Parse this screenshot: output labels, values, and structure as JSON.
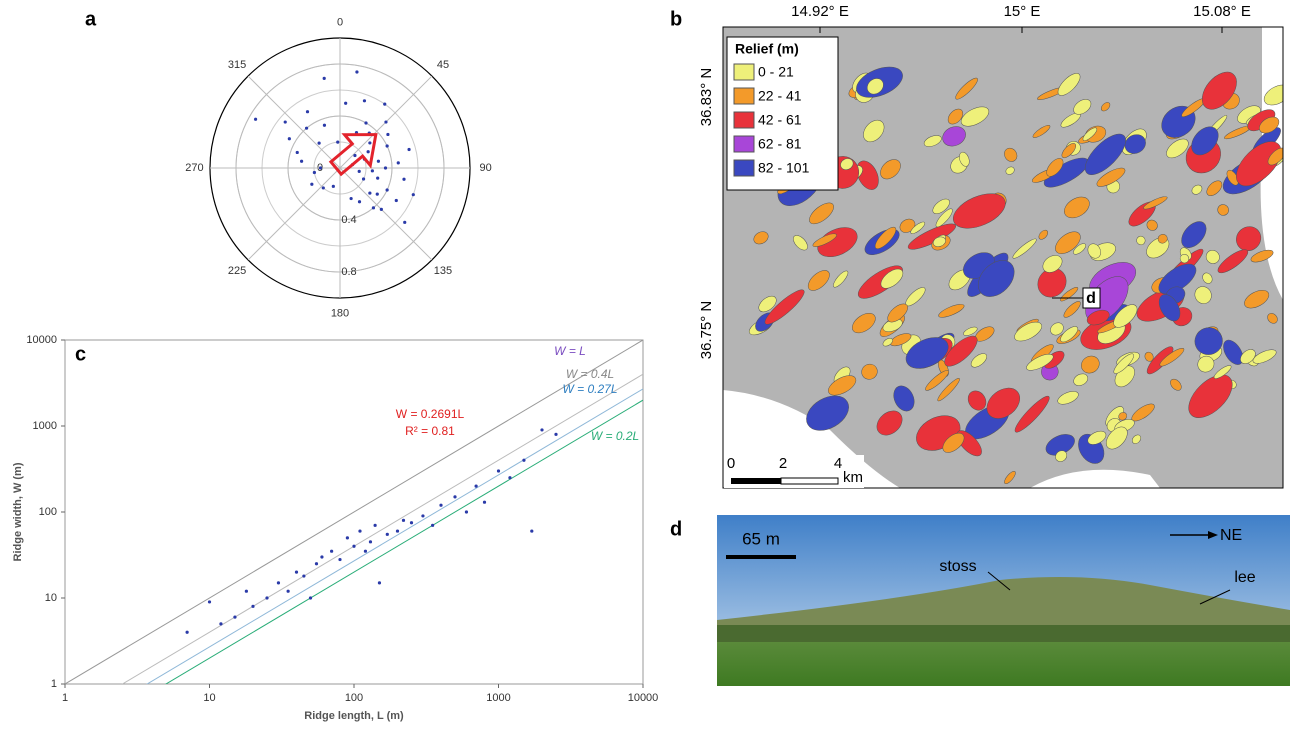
{
  "panels": [
    "a",
    "b",
    "c",
    "d"
  ],
  "chart_data": [
    {
      "type": "polar-scatter",
      "color": "#2a3aa8",
      "theta": [
        10,
        20,
        30,
        35,
        40,
        45,
        50,
        55,
        60,
        65,
        70,
        75,
        80,
        85,
        90,
        95,
        100,
        105,
        110,
        115,
        120,
        125,
        130,
        135,
        140,
        150,
        160,
        200,
        220,
        240,
        260,
        270,
        280,
        290,
        300,
        310,
        320,
        330,
        340,
        350,
        355,
        5,
        25,
        50,
        75,
        100,
        115,
        130,
        300,
        320
      ],
      "r": [
        0.75,
        0.55,
        0.4,
        0.6,
        0.35,
        0.5,
        0.3,
        0.45,
        0.25,
        0.4,
        0.2,
        0.55,
        0.3,
        0.45,
        0.35,
        0.25,
        0.5,
        0.3,
        0.6,
        0.4,
        0.5,
        0.35,
        0.65,
        0.45,
        0.4,
        0.3,
        0.25,
        0.15,
        0.2,
        0.25,
        0.2,
        0.15,
        0.3,
        0.35,
        0.45,
        0.55,
        0.4,
        0.5,
        0.35,
        0.7,
        0.2,
        0.5,
        0.3,
        0.15,
        0.1,
        0.15,
        0.2,
        0.3,
        0.75,
        0.25
      ],
      "thetaticks": [
        0,
        45,
        90,
        135,
        180,
        225,
        270,
        315
      ],
      "rlim": [
        0,
        1
      ],
      "rticks": [
        0,
        0.4,
        0.8
      ]
    },
    {
      "type": "scatter",
      "log_x": true,
      "log_y": true,
      "color": "#2a3aa8",
      "x_label": "Ridge length, L (m)",
      "y_label": "Ridge width, W (m)",
      "x": [
        7,
        10,
        12,
        15,
        18,
        20,
        25,
        30,
        35,
        40,
        45,
        50,
        55,
        60,
        70,
        80,
        90,
        100,
        110,
        120,
        130,
        140,
        150,
        170,
        200,
        220,
        250,
        300,
        350,
        400,
        500,
        600,
        700,
        800,
        1000,
        1200,
        1500,
        2000,
        2500,
        1700
      ],
      "values": [
        4,
        9,
        5,
        6,
        12,
        8,
        10,
        15,
        12,
        20,
        18,
        10,
        25,
        30,
        35,
        28,
        50,
        40,
        60,
        35,
        45,
        70,
        15,
        55,
        60,
        80,
        75,
        90,
        70,
        120,
        150,
        100,
        200,
        130,
        300,
        250,
        400,
        900,
        800,
        60
      ],
      "xlim": [
        1,
        10000
      ],
      "ylim": [
        1,
        10000
      ],
      "xticks": [
        1,
        10,
        100,
        1000,
        10000
      ],
      "yticks": [
        1,
        10,
        100,
        1000,
        10000
      ],
      "lines": [
        {
          "name": "W = L",
          "slope": 1,
          "color": "#7a4cc0",
          "line_color": "#999999"
        },
        {
          "name": "W = 0.4L",
          "slope": 0.4,
          "color": "#888888",
          "line_color": "#bbbbbb"
        },
        {
          "name": "W = 0.27L",
          "slope": 0.27,
          "color": "#2f7fc1",
          "line_color": "#8fb8d8"
        },
        {
          "name": "W = 0.2L",
          "slope": 0.2,
          "color": "#2aad78",
          "line_color": "#2aad78"
        }
      ],
      "annotations": [
        "W = 0.2691L",
        "R² = 0.81"
      ],
      "annotation_color": "#e02020"
    }
  ],
  "map": {
    "lon_labels": [
      "14.92° E",
      "15° E",
      "15.08° E"
    ],
    "lat_labels": [
      "36.83° N",
      "36.75° N"
    ],
    "legend_title": "Relief (m)",
    "classes": [
      {
        "label": "0 - 21",
        "color": "#eef07a"
      },
      {
        "label": "22 - 41",
        "color": "#f39a2a"
      },
      {
        "label": "42 - 61",
        "color": "#e8323a"
      },
      {
        "label": "62 - 81",
        "color": "#a846d8"
      },
      {
        "label": "82 - 101",
        "color": "#3a48c0"
      }
    ],
    "scale_labels": [
      "0",
      "2",
      "4"
    ],
    "scale_unit": "km",
    "marker": "d"
  },
  "photo": {
    "scale": "65 m",
    "direction": "NE",
    "labels": [
      "stoss",
      "lee"
    ]
  }
}
